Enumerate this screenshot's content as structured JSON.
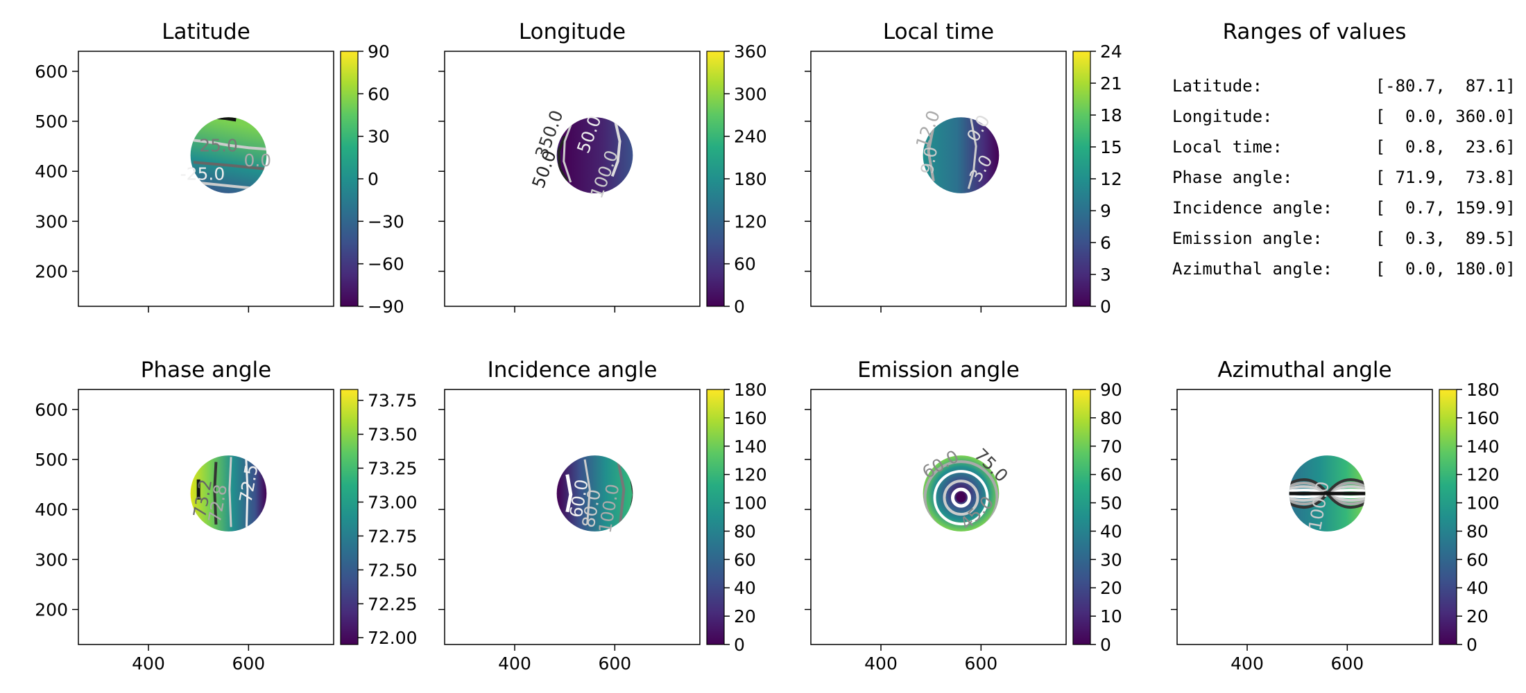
{
  "chart_data": [
    {
      "type": "heatmap",
      "title": "Latitude",
      "xlim": [
        260,
        770
      ],
      "ylim": [
        130,
        640
      ],
      "xticks": [
        400,
        600
      ],
      "yticks": [
        200,
        300,
        400,
        500,
        600
      ],
      "show_x_labels": false,
      "show_y_labels": true,
      "disc": {
        "center": [
          560,
          432
        ],
        "radius": 76
      },
      "colorbar": {
        "min": -90,
        "max": 90,
        "ticks": [
          "90",
          "60",
          "30",
          "0",
          "−30",
          "−60",
          "−90"
        ],
        "tick_values": [
          90,
          60,
          30,
          0,
          -30,
          -60,
          -90
        ]
      },
      "contour_labels": [
        "25.0",
        "0.0",
        "-25.0"
      ]
    },
    {
      "type": "heatmap",
      "title": "Longitude",
      "xlim": [
        260,
        770
      ],
      "ylim": [
        130,
        640
      ],
      "xticks": [
        400,
        600
      ],
      "yticks": [
        200,
        300,
        400,
        500,
        600
      ],
      "show_x_labels": false,
      "show_y_labels": false,
      "disc": {
        "center": [
          560,
          432
        ],
        "radius": 76
      },
      "colorbar": {
        "min": 0,
        "max": 360,
        "ticks": [
          "360",
          "300",
          "240",
          "180",
          "120",
          "60",
          "0"
        ],
        "tick_values": [
          360,
          300,
          240,
          180,
          120,
          60,
          0
        ]
      },
      "contour_labels": [
        "350.0",
        "50.0",
        "100.0",
        "50.0"
      ]
    },
    {
      "type": "heatmap",
      "title": "Local time",
      "xlim": [
        260,
        770
      ],
      "ylim": [
        130,
        640
      ],
      "xticks": [
        400,
        600
      ],
      "yticks": [
        200,
        300,
        400,
        500,
        600
      ],
      "show_x_labels": false,
      "show_y_labels": false,
      "disc": {
        "center": [
          560,
          432
        ],
        "radius": 76
      },
      "colorbar": {
        "min": 0,
        "max": 24,
        "ticks": [
          "24",
          "21",
          "18",
          "15",
          "12",
          "9",
          "6",
          "3",
          "0"
        ],
        "tick_values": [
          24,
          21,
          18,
          15,
          12,
          9,
          6,
          3,
          0
        ]
      },
      "contour_labels": [
        "12.0",
        "9.0",
        "0.0",
        "3.0"
      ]
    },
    {
      "type": "heatmap",
      "title": "Phase angle",
      "xlim": [
        260,
        770
      ],
      "ylim": [
        130,
        640
      ],
      "xticks": [
        400,
        600
      ],
      "yticks": [
        200,
        300,
        400,
        500,
        600
      ],
      "show_x_labels": true,
      "show_y_labels": true,
      "disc": {
        "center": [
          560,
          432
        ],
        "radius": 76
      },
      "colorbar": {
        "min": 71.95,
        "max": 73.83,
        "ticks": [
          "73.75",
          "73.50",
          "73.25",
          "73.00",
          "72.75",
          "72.50",
          "72.25",
          "72.00"
        ],
        "tick_values": [
          73.75,
          73.5,
          73.25,
          73.0,
          72.75,
          72.5,
          72.25,
          72.0
        ]
      },
      "contour_labels": [
        "73.2",
        "72.8",
        "72.5"
      ]
    },
    {
      "type": "heatmap",
      "title": "Incidence angle",
      "xlim": [
        260,
        770
      ],
      "ylim": [
        130,
        640
      ],
      "xticks": [
        400,
        600
      ],
      "yticks": [
        200,
        300,
        400,
        500,
        600
      ],
      "show_x_labels": true,
      "show_y_labels": false,
      "disc": {
        "center": [
          560,
          432
        ],
        "radius": 76
      },
      "colorbar": {
        "min": 0,
        "max": 180,
        "ticks": [
          "180",
          "160",
          "140",
          "120",
          "100",
          "80",
          "60",
          "40",
          "20",
          "0"
        ],
        "tick_values": [
          180,
          160,
          140,
          120,
          100,
          80,
          60,
          40,
          20,
          0
        ]
      },
      "contour_labels": [
        "60.0",
        "80.0",
        "100.0"
      ]
    },
    {
      "type": "heatmap",
      "title": "Emission angle",
      "xlim": [
        260,
        770
      ],
      "ylim": [
        130,
        640
      ],
      "xticks": [
        400,
        600
      ],
      "yticks": [
        200,
        300,
        400,
        500,
        600
      ],
      "show_x_labels": true,
      "show_y_labels": false,
      "disc": {
        "center": [
          560,
          432
        ],
        "radius": 76
      },
      "colorbar": {
        "min": 0,
        "max": 90,
        "ticks": [
          "90",
          "80",
          "70",
          "60",
          "50",
          "40",
          "30",
          "20",
          "10",
          "0"
        ],
        "tick_values": [
          90,
          80,
          70,
          60,
          50,
          40,
          30,
          20,
          10,
          0
        ]
      },
      "contour_labels": [
        "60.0",
        "75.0",
        "45.0"
      ]
    },
    {
      "type": "heatmap",
      "title": "Azimuthal angle",
      "xlim": [
        260,
        770
      ],
      "ylim": [
        130,
        640
      ],
      "xticks": [
        400,
        600
      ],
      "yticks": [
        200,
        300,
        400,
        500,
        600
      ],
      "show_x_labels": true,
      "show_y_labels": false,
      "disc": {
        "center": [
          560,
          432
        ],
        "radius": 76
      },
      "colorbar": {
        "min": 0,
        "max": 180,
        "ticks": [
          "180",
          "160",
          "140",
          "120",
          "100",
          "80",
          "60",
          "40",
          "20",
          "0"
        ],
        "tick_values": [
          180,
          160,
          140,
          120,
          100,
          80,
          60,
          40,
          20,
          0
        ]
      },
      "contour_labels": [
        "100.0"
      ]
    }
  ],
  "ranges_panel": {
    "title": "Ranges of values",
    "rows": [
      {
        "label": "Latitude:",
        "range": "[-80.7,  87.1]"
      },
      {
        "label": "Longitude:",
        "range": "[  0.0, 360.0]"
      },
      {
        "label": "Local time:",
        "range": "[  0.8,  23.6]"
      },
      {
        "label": "Phase angle:",
        "range": "[ 71.9,  73.8]"
      },
      {
        "label": "Incidence angle:",
        "range": "[  0.7, 159.9]"
      },
      {
        "label": "Emission angle:",
        "range": "[  0.3,  89.5]"
      },
      {
        "label": "Azimuthal angle:",
        "range": "[  0.0, 180.0]"
      }
    ]
  },
  "colormap": "viridis"
}
